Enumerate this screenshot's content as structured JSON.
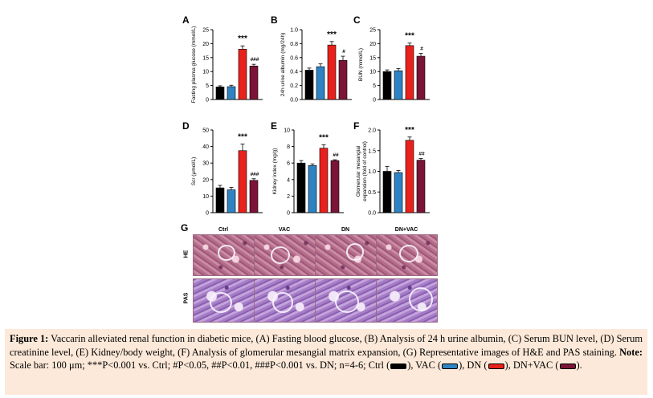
{
  "panels": [
    {
      "id": "A",
      "letter": "A",
      "ylabel": "Fasting plasma glucose (mmol/L)",
      "ticks": [
        "0",
        "5",
        "10",
        "15",
        "20",
        "25"
      ],
      "ylim": [
        0,
        25
      ],
      "values": [
        4.5,
        4.6,
        18.0,
        12.0
      ],
      "errors": [
        0.4,
        0.5,
        1.2,
        0.6
      ],
      "sig": [
        {
          "bar": 2,
          "text": "***",
          "type": "top"
        },
        {
          "bar": 3,
          "text": "###",
          "type": "side"
        }
      ]
    },
    {
      "id": "B",
      "letter": "B",
      "ylabel": "24h urine albumin (mg/24h)",
      "ticks": [
        "0.0",
        "0.2",
        "0.4",
        "0.6",
        "0.8",
        "1.0"
      ],
      "ylim": [
        0,
        1.0
      ],
      "values": [
        0.42,
        0.47,
        0.78,
        0.56
      ],
      "errors": [
        0.03,
        0.04,
        0.05,
        0.06
      ],
      "sig": [
        {
          "bar": 2,
          "text": "***",
          "type": "top"
        },
        {
          "bar": 3,
          "text": "#",
          "type": "side"
        }
      ]
    },
    {
      "id": "C",
      "letter": "C",
      "ylabel": "BUN (mmol/L)",
      "ticks": [
        "0",
        "5",
        "10",
        "15",
        "20",
        "25"
      ],
      "ylim": [
        0,
        25
      ],
      "values": [
        10.0,
        10.3,
        19.3,
        15.5
      ],
      "errors": [
        0.6,
        0.8,
        0.9,
        1.0
      ],
      "sig": [
        {
          "bar": 2,
          "text": "***",
          "type": "top"
        },
        {
          "bar": 3,
          "text": "#",
          "type": "side"
        }
      ]
    },
    {
      "id": "D",
      "letter": "D",
      "ylabel": "Scr (μmol/L)",
      "ticks": [
        "0",
        "10",
        "20",
        "30",
        "40",
        "50"
      ],
      "ylim": [
        0,
        50
      ],
      "values": [
        15.0,
        13.8,
        37.5,
        19.5
      ],
      "errors": [
        1.5,
        1.5,
        4.0,
        1.0
      ],
      "sig": [
        {
          "bar": 2,
          "text": "***",
          "type": "top"
        },
        {
          "bar": 3,
          "text": "###",
          "type": "side"
        }
      ]
    },
    {
      "id": "E",
      "letter": "E",
      "ylabel": "Kidney index (mg/g)",
      "ticks": [
        "0",
        "2",
        "4",
        "6",
        "8",
        "10"
      ],
      "ylim": [
        0,
        10
      ],
      "values": [
        6.0,
        5.7,
        7.8,
        6.3
      ],
      "errors": [
        0.3,
        0.2,
        0.4,
        0.1
      ],
      "sig": [
        {
          "bar": 2,
          "text": "***",
          "type": "top"
        },
        {
          "bar": 3,
          "text": "##",
          "type": "side"
        }
      ]
    },
    {
      "id": "F",
      "letter": "F",
      "ylabel": "Glomerular mesangial expansion (fold of control)",
      "ticks": [
        "0.0",
        "0.5",
        "1.0",
        "1.5",
        "2.0"
      ],
      "ylim": [
        0,
        2.0
      ],
      "values": [
        1.0,
        0.97,
        1.75,
        1.27
      ],
      "errors": [
        0.12,
        0.05,
        0.08,
        0.04
      ],
      "sig": [
        {
          "bar": 2,
          "text": "***",
          "type": "top"
        },
        {
          "bar": 3,
          "text": "##",
          "type": "side"
        }
      ]
    }
  ],
  "chart_data": [
    {
      "type": "bar",
      "panel": "A",
      "categories": [
        "Ctrl",
        "VAC",
        "DN",
        "DN+VAC"
      ],
      "values": [
        4.5,
        4.6,
        18.0,
        12.0
      ],
      "ylabel": "Fasting plasma glucose (mmol/L)",
      "ylim": [
        0,
        25
      ]
    },
    {
      "type": "bar",
      "panel": "B",
      "categories": [
        "Ctrl",
        "VAC",
        "DN",
        "DN+VAC"
      ],
      "values": [
        0.42,
        0.47,
        0.78,
        0.56
      ],
      "ylabel": "24h urine albumin (mg/24h)",
      "ylim": [
        0,
        1.0
      ]
    },
    {
      "type": "bar",
      "panel": "C",
      "categories": [
        "Ctrl",
        "VAC",
        "DN",
        "DN+VAC"
      ],
      "values": [
        10.0,
        10.3,
        19.3,
        15.5
      ],
      "ylabel": "BUN (mmol/L)",
      "ylim": [
        0,
        25
      ]
    },
    {
      "type": "bar",
      "panel": "D",
      "categories": [
        "Ctrl",
        "VAC",
        "DN",
        "DN+VAC"
      ],
      "values": [
        15.0,
        13.8,
        37.5,
        19.5
      ],
      "ylabel": "Scr (μmol/L)",
      "ylim": [
        0,
        50
      ]
    },
    {
      "type": "bar",
      "panel": "E",
      "categories": [
        "Ctrl",
        "VAC",
        "DN",
        "DN+VAC"
      ],
      "values": [
        6.0,
        5.7,
        7.8,
        6.3
      ],
      "ylabel": "Kidney index (mg/g)",
      "ylim": [
        0,
        10
      ]
    },
    {
      "type": "bar",
      "panel": "F",
      "categories": [
        "Ctrl",
        "VAC",
        "DN",
        "DN+VAC"
      ],
      "values": [
        1.0,
        0.97,
        1.75,
        1.27
      ],
      "ylabel": "Glomerular mesangial expansion (fold of control)",
      "ylim": [
        0,
        2.0
      ]
    }
  ],
  "bar_colors": [
    "#000000",
    "#2f83c3",
    "#e8211c",
    "#7b1437"
  ],
  "micrograph": {
    "letter": "G",
    "columns": [
      "Ctrl",
      "VAC",
      "DN",
      "DN+VAC"
    ],
    "rows": [
      "HE",
      "PAS"
    ]
  },
  "caption": {
    "figure_label": "Figure 1:",
    "text1": " Vaccarin alleviated renal function in diabetic mice, (A) Fasting blood glucose, (B) Analysis of 24 h urine albumin, (C) Serum BUN level, (D) Serum creatinine level, (E) Kidney/body weight, (F) Analysis of glomerular mesangial matrix expansion, (G) Representative images of H&E and PAS staining. ",
    "note_label": "Note:",
    "text2": " Scale bar: 100 μm; ***P<0.001 vs. Ctrl; #P<0.05, ##P<0.01, ###P<0.001 vs. DN; n=4-6; Ctrl (",
    "vac_text": "), VAC (",
    "dn_text": "), DN (",
    "dnvac_text": "), DN+VAC (",
    "end_text": ")."
  }
}
